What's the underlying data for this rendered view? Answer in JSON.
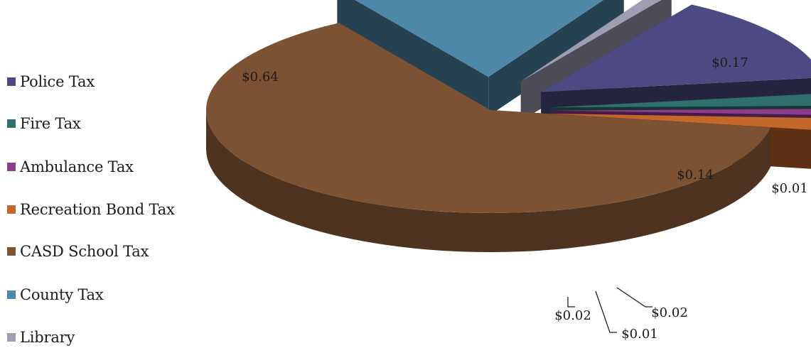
{
  "chart_data": {
    "type": "pie",
    "title": "",
    "legend_position": "left",
    "slices": [
      {
        "name": "Police Tax",
        "value": 0.14,
        "label": "$0.14",
        "color": "#4d4a83"
      },
      {
        "name": "Fire Tax",
        "value": 0.02,
        "label": "$0.02",
        "color": "#2f6f6c"
      },
      {
        "name": "Ambulance Tax",
        "value": 0.01,
        "label": "$0.01",
        "color": "#8e3b8e"
      },
      {
        "name": "Recreation Bond Tax",
        "value": 0.02,
        "label": "$0.02",
        "color": "#c4672b"
      },
      {
        "name": "CASD School Tax",
        "value": 0.64,
        "label": "$0.64",
        "color": "#7d5233"
      },
      {
        "name": "County Tax",
        "value": 0.17,
        "label": "$0.17",
        "color": "#4f87a8"
      },
      {
        "name": "Library",
        "value": 0.01,
        "label": "$0.01",
        "color": "#9e9db4"
      }
    ]
  }
}
